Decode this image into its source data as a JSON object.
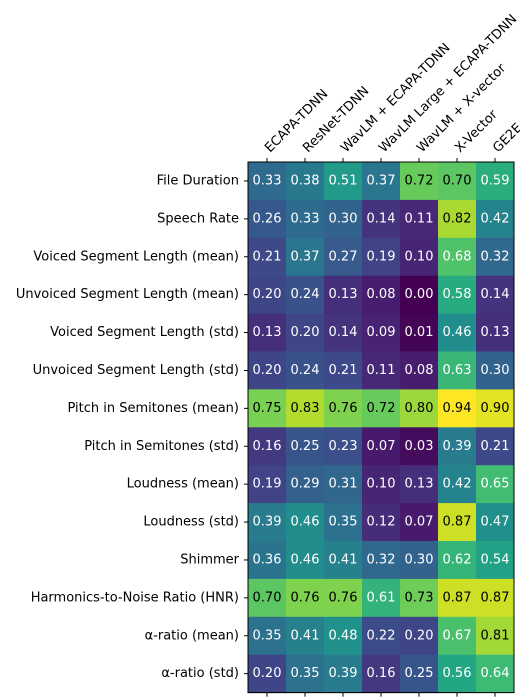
{
  "chart_data": {
    "type": "heatmap",
    "columns": [
      "ECAPA-TDNN",
      "ResNet-TDNN",
      "WavLM + ECAPA-TDNN",
      "WavLM Large + ECAPA-TDNN",
      "WavLM + X-vector",
      "X-Vector",
      "GE2E"
    ],
    "rows": [
      "File Duration",
      "Speech Rate",
      "Voiced Segment Length (mean)",
      "Unvoiced Segment Length (mean)",
      "Voiced Segment Length (std)",
      "Unvoiced Segment Length (std)",
      "Pitch in Semitones (mean)",
      "Pitch in Semitones (std)",
      "Loudness (mean)",
      "Loudness (std)",
      "Shimmer",
      "Harmonics-to-Noise Ratio (HNR)",
      "α-ratio (mean)",
      "α-ratio (std)"
    ],
    "values": [
      [
        0.33,
        0.38,
        0.51,
        0.37,
        0.72,
        0.7,
        0.59
      ],
      [
        0.26,
        0.33,
        0.3,
        0.14,
        0.11,
        0.82,
        0.42
      ],
      [
        0.21,
        0.37,
        0.27,
        0.19,
        0.1,
        0.68,
        0.32
      ],
      [
        0.2,
        0.24,
        0.13,
        0.08,
        0.0,
        0.58,
        0.14
      ],
      [
        0.13,
        0.2,
        0.14,
        0.09,
        0.01,
        0.46,
        0.13
      ],
      [
        0.2,
        0.24,
        0.21,
        0.11,
        0.08,
        0.63,
        0.3
      ],
      [
        0.75,
        0.83,
        0.76,
        0.72,
        0.8,
        0.94,
        0.9
      ],
      [
        0.16,
        0.25,
        0.23,
        0.07,
        0.03,
        0.39,
        0.21
      ],
      [
        0.19,
        0.29,
        0.31,
        0.1,
        0.13,
        0.42,
        0.65
      ],
      [
        0.39,
        0.46,
        0.35,
        0.12,
        0.07,
        0.87,
        0.47
      ],
      [
        0.36,
        0.46,
        0.41,
        0.32,
        0.3,
        0.62,
        0.54
      ],
      [
        0.7,
        0.76,
        0.76,
        0.61,
        0.73,
        0.87,
        0.87
      ],
      [
        0.35,
        0.41,
        0.48,
        0.22,
        0.2,
        0.67,
        0.81
      ],
      [
        0.2,
        0.35,
        0.39,
        0.16,
        0.25,
        0.56,
        0.64
      ]
    ],
    "value_range": [
      0.0,
      0.94
    ],
    "colormap": "viridis",
    "value_format": "2 decimals"
  }
}
